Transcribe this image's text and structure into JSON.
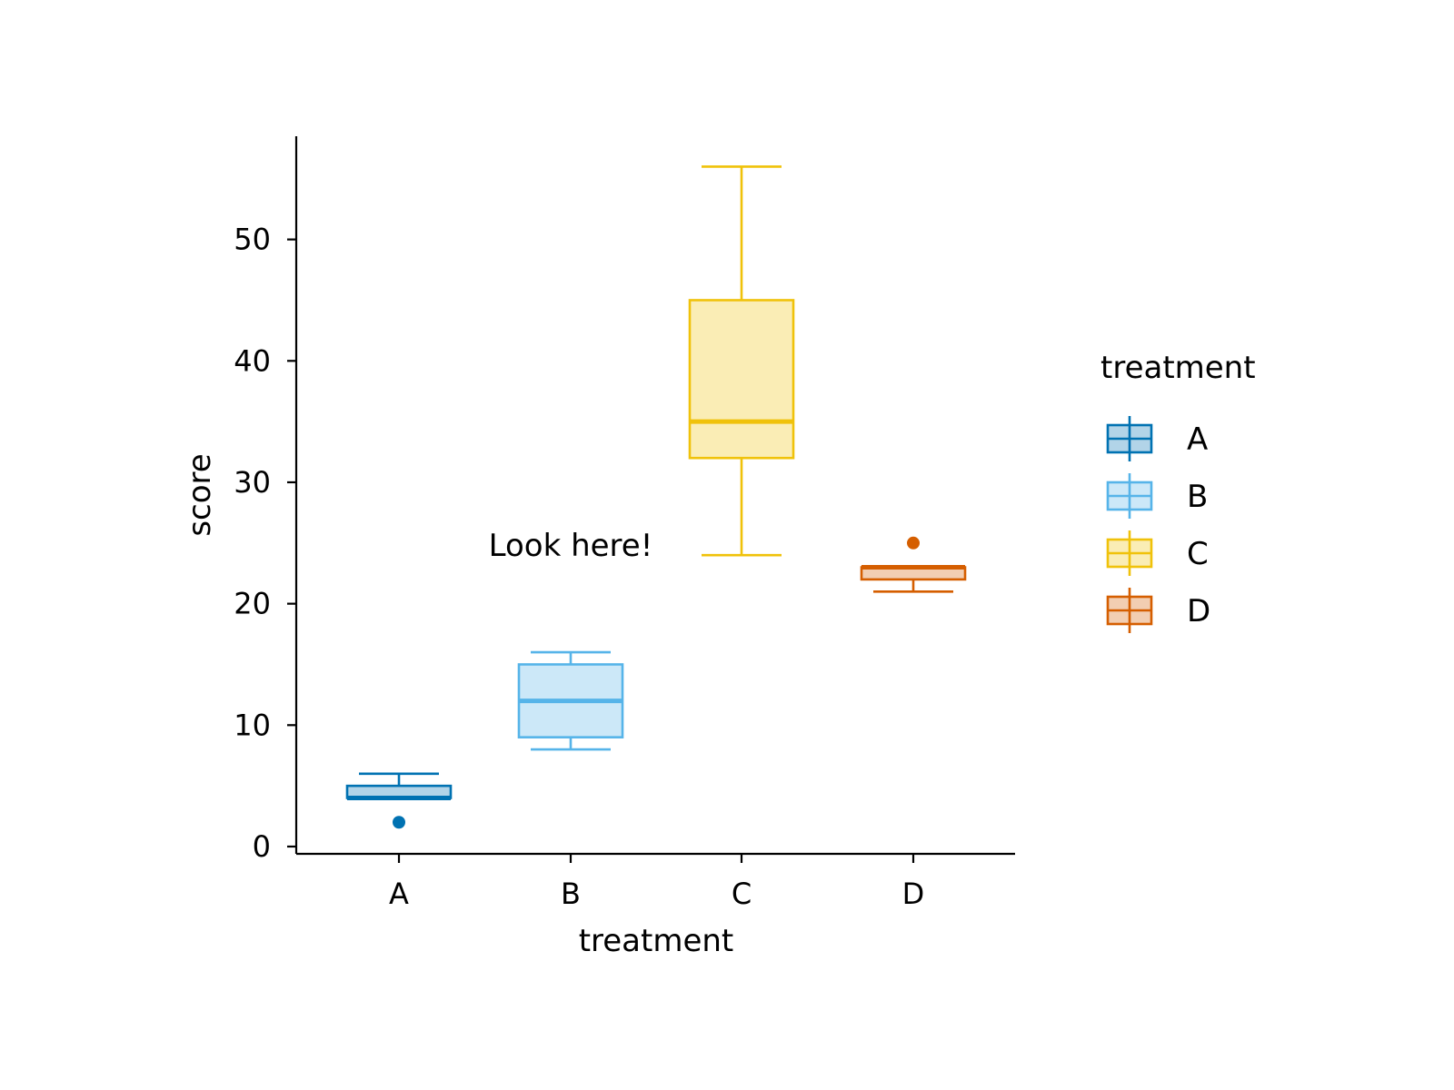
{
  "chart_data": {
    "type": "box",
    "title": "",
    "xlabel": "treatment",
    "ylabel": "score",
    "categories": [
      "A",
      "B",
      "C",
      "D"
    ],
    "ylim": [
      -0.6,
      58.5
    ],
    "yticks": [
      0,
      10,
      20,
      30,
      40,
      50
    ],
    "grid": false,
    "boxes": [
      {
        "category": "A",
        "color": "#0072B2",
        "whisker_low": 4,
        "q1": 4,
        "median": 4,
        "q3": 5,
        "whisker_high": 6,
        "outliers": [
          2
        ]
      },
      {
        "category": "B",
        "color": "#56B4E9",
        "whisker_low": 8,
        "q1": 9,
        "median": 12,
        "q3": 15,
        "whisker_high": 16,
        "outliers": []
      },
      {
        "category": "C",
        "color": "#F0C20A",
        "whisker_low": 24,
        "q1": 32,
        "median": 35,
        "q3": 45,
        "whisker_high": 56,
        "outliers": []
      },
      {
        "category": "D",
        "color": "#D55E00",
        "whisker_low": 21,
        "q1": 22,
        "median": 23,
        "q3": 23,
        "whisker_high": 23,
        "outliers": [
          25
        ]
      }
    ],
    "legend": {
      "title": "treatment",
      "placement": "right",
      "entries": [
        "A",
        "B",
        "C",
        "D"
      ]
    },
    "annotations": [
      {
        "text": "Look here!",
        "x": "B",
        "y": 25
      }
    ]
  }
}
